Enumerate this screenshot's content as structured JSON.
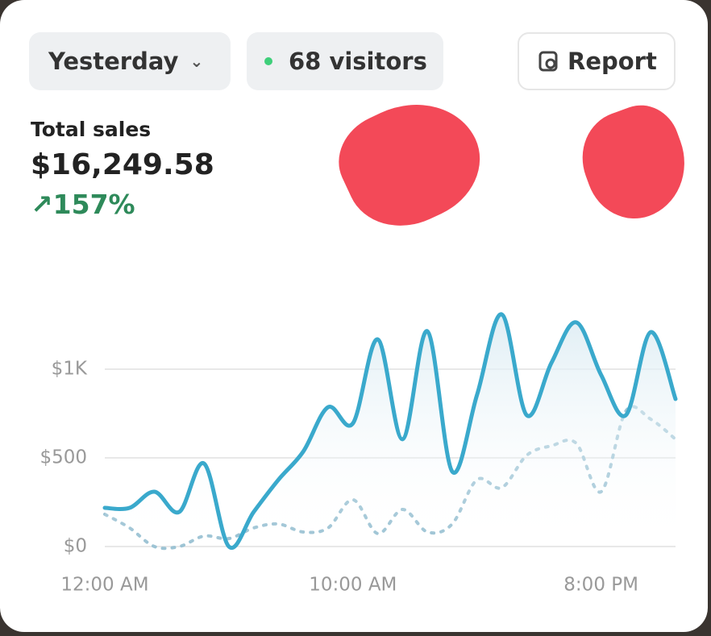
{
  "header": {
    "period": "Yesterday",
    "visitors": "68 visitors",
    "report": "Report"
  },
  "metric": {
    "label": "Total sales",
    "value": "$16,249.58",
    "change": "157%"
  },
  "chart_data": {
    "type": "line",
    "categories": [
      "12:00 AM",
      null,
      null,
      null,
      null,
      null,
      null,
      null,
      null,
      null,
      "10:00 AM",
      null,
      null,
      null,
      null,
      null,
      null,
      null,
      null,
      null,
      "8:00 PM",
      null,
      null,
      null
    ],
    "series": [
      {
        "color": "#3aa9cc",
        "style": "solid",
        "values": [
          218,
          218,
          309,
          195,
          468,
          0,
          195,
          377,
          536,
          786,
          695,
          1168,
          605,
          1214,
          423,
          855,
          1309,
          741,
          1036,
          1264,
          968,
          741,
          1209,
          832
        ]
      },
      {
        "color": "#9cc3d4",
        "style": "dotted",
        "values": [
          182,
          105,
          0,
          0,
          59,
          45,
          105,
          127,
          82,
          105,
          264,
          73,
          209,
          82,
          127,
          377,
          332,
          514,
          568,
          582,
          309,
          764,
          718,
          605
        ]
      }
    ],
    "ylim": [
      0,
      1000
    ],
    "yticks": [
      {
        "value": 0,
        "label": "$0"
      },
      {
        "value": 500,
        "label": "$500"
      },
      {
        "value": 1000,
        "label": "$1K"
      }
    ],
    "grid": true
  }
}
